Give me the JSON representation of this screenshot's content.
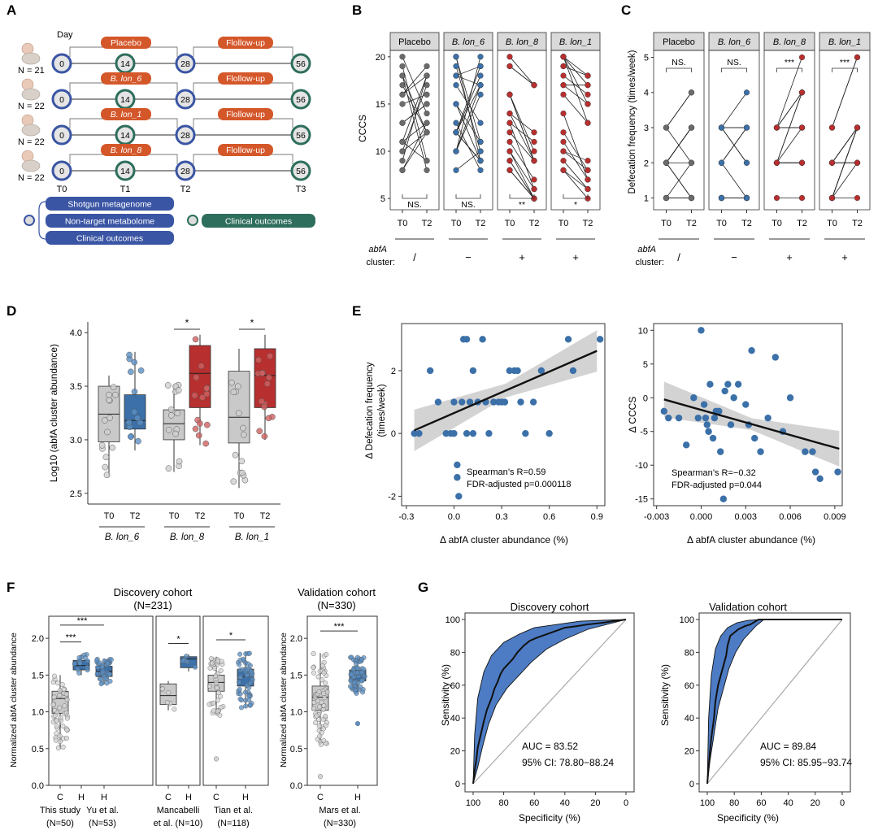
{
  "panels": {
    "A": {
      "letter": "A",
      "day_label": "Day",
      "timepoints": [
        "T0",
        "T1",
        "T2",
        "T3"
      ],
      "days": [
        "0",
        "14",
        "28",
        "56"
      ],
      "groups": [
        {
          "n": "N = 21",
          "treatment": "Placebo",
          "followup": "Flollow-up"
        },
        {
          "n": "N = 22",
          "treatment": "B. lon_6",
          "followup": "Flollow-up"
        },
        {
          "n": "N = 22",
          "treatment": "B. lon_1",
          "followup": "Flollow-up"
        },
        {
          "n": "N = 22",
          "treatment": "B. lon_8",
          "followup": "Flollow-up"
        }
      ],
      "legend_blue": [
        "Shotgun metagenome",
        "Non-target metabolome",
        "Clinical outcomes"
      ],
      "legend_green": "Clinical outcomes",
      "colors": {
        "blue": "#3a55a4",
        "green": "#2e6e5c",
        "orange": "#d4572a"
      }
    },
    "B": {
      "letter": "B",
      "ylabel": "CCCS",
      "yticks": [
        5,
        10,
        15,
        20
      ],
      "xticks": [
        "T0",
        "T2"
      ],
      "facets": [
        {
          "title": "Placebo",
          "sig": "NS.",
          "cluster": "/"
        },
        {
          "title": "B. lon_6",
          "sig": "NS.",
          "cluster": "−"
        },
        {
          "title": "B. lon_8",
          "sig": "**",
          "cluster": "+"
        },
        {
          "title": "B. lon_1",
          "sig": "*",
          "cluster": "+"
        }
      ],
      "cluster_label_1": "abfA",
      "cluster_label_2": "cluster:"
    },
    "C": {
      "letter": "C",
      "ylabel": "Defecation frequency (times/week)",
      "yticks": [
        1,
        2,
        3,
        4,
        5
      ],
      "xticks": [
        "T0",
        "T2"
      ],
      "facets": [
        {
          "title": "Placebo",
          "sig": "NS.",
          "cluster": "/"
        },
        {
          "title": "B. lon_6",
          "sig": "NS.",
          "cluster": "−"
        },
        {
          "title": "B. lon_8",
          "sig": "***",
          "cluster": "+"
        },
        {
          "title": "B. lon_1",
          "sig": "***",
          "cluster": "+"
        }
      ],
      "cluster_label_1": "abfA",
      "cluster_label_2": "cluster:"
    },
    "D": {
      "letter": "D",
      "ylabel": "Log10 (abfA cluster abundance)",
      "yticks": [
        2.5,
        3.0,
        3.5,
        4.0
      ],
      "xticks": [
        "T0",
        "T2"
      ],
      "groups": [
        "B. lon_6",
        "B. lon_8",
        "B. lon_1"
      ],
      "sig": [
        "",
        "*",
        "*"
      ]
    },
    "E": {
      "letter": "E",
      "left": {
        "ylabel1": "Δ Defecation frequency",
        "ylabel2": "(times/week)",
        "xlabel": "Δ abfA cluster abundance (%)",
        "stat1": "Spearman’s R=0.59",
        "stat2": "FDR-adjusted  p=0.000118",
        "xticks": [
          "-0.3",
          "0.0",
          "0.3",
          "0.6",
          "0.9"
        ],
        "yticks": [
          "-2",
          "0",
          "2"
        ]
      },
      "right": {
        "ylabel": "Δ CCCS",
        "xlabel": "Δ abfA cluster abundance (%)",
        "stat1": "Spearman’s R=−0.32",
        "stat2": "FDR-adjusted  p=0.044",
        "xticks": [
          "-0.003",
          "0.000",
          "0.003",
          "0.006",
          "0.009"
        ],
        "yticks": [
          "-15",
          "-10",
          "-5",
          "0",
          "5",
          "10"
        ]
      }
    },
    "F": {
      "letter": "F",
      "discovery_title": "Discovery cohort",
      "discovery_n": "(N=231)",
      "validation_title": "Validation cohort",
      "validation_n": "(N=330)",
      "ylabel": "Normalized abfA cluster abundance",
      "yticks": [
        "0.0",
        "0.5",
        "1.0",
        "1.5",
        "2.0"
      ],
      "x_cats": [
        "C",
        "H"
      ],
      "studies": [
        {
          "name": "This study",
          "n": "(N=50)"
        },
        {
          "name": "Yu et al.",
          "n": "(N=53)"
        },
        {
          "name": "Mancabelli",
          "name2": "et al. (N=10)"
        },
        {
          "name": "Tian et al.",
          "n": "(N=118)"
        },
        {
          "name": "Mars et al.",
          "n": "(N=330)"
        }
      ],
      "sig": [
        "***",
        "***",
        "*",
        "*",
        "***"
      ]
    },
    "G": {
      "letter": "G",
      "left": {
        "title": "Discovery cohort",
        "auc": "AUC = 83.52",
        "ci": "95% CI: 78.80−88.24"
      },
      "right": {
        "title": "Validation cohort",
        "auc": "AUC = 89.84",
        "ci": "95% CI: 85.95−93.74"
      },
      "ylabel": "Sensitivity (%)",
      "xlabel": "Specificity (%)",
      "ticks": [
        "0",
        "20",
        "40",
        "60",
        "80",
        "100"
      ]
    }
  },
  "colors": {
    "gray": "#9a9a9a",
    "dark_gray": "#6b6b6b",
    "blue": "#3b70a8",
    "red": "#b82f2f",
    "facet_header": "#d9d9d9",
    "roc_fill": "#4d7cc4"
  }
}
